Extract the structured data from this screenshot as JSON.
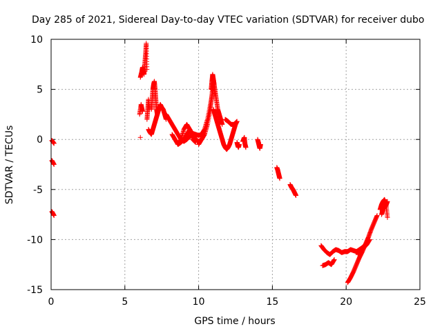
{
  "chart_data": {
    "type": "scatter",
    "title": "Day 285 of 2021, Sidereal Day-to-day VTEC variation (SDTVAR) for receiver dubo",
    "xlabel": "GPS time / hours",
    "ylabel": "SDTVAR / TECUs",
    "xlim": [
      0,
      25
    ],
    "ylim": [
      -15,
      10
    ],
    "xticks": [
      0,
      5,
      10,
      15,
      20,
      25
    ],
    "yticks": [
      -15,
      -10,
      -5,
      0,
      5,
      10
    ],
    "grid": true,
    "marker": "+",
    "color": "#ff0000",
    "series": [
      {
        "name": "SDTVAR",
        "segments": [
          {
            "x": [
              0.05,
              0.2
            ],
            "y": [
              -0.1,
              -0.4
            ]
          },
          {
            "x": [
              0.05,
              0.2
            ],
            "y": [
              -2.1,
              -2.5
            ]
          },
          {
            "x": [
              0.05,
              0.2
            ],
            "y": [
              -7.2,
              -7.6
            ]
          },
          {
            "x": [
              6.05,
              6.15,
              6.2,
              6.25,
              6.3,
              6.35,
              6.4,
              6.45,
              6.5
            ],
            "y": [
              6.2,
              6.8,
              7.2,
              7.0,
              6.5,
              7.5,
              8.5,
              9.6,
              7.0
            ]
          },
          {
            "x": [
              6.0,
              6.1,
              6.2
            ],
            "y": [
              2.5,
              3.5,
              2.8
            ]
          },
          {
            "x": [
              6.05
            ],
            "y": [
              0.2
            ]
          },
          {
            "x": [
              6.6,
              6.7,
              6.8,
              6.9,
              7.0,
              7.1,
              7.2,
              7.3,
              7.4,
              7.5,
              7.6,
              7.7,
              7.8
            ],
            "y": [
              1.0,
              0.7,
              0.5,
              1.0,
              1.5,
              2.0,
              2.5,
              3.0,
              3.5,
              3.2,
              3.0,
              2.5,
              2.0
            ]
          },
          {
            "x": [
              6.8,
              6.85,
              6.9,
              6.95,
              7.0,
              7.05,
              7.1,
              7.15,
              7.2
            ],
            "y": [
              3.0,
              4.0,
              5.0,
              5.5,
              5.8,
              5.0,
              4.0,
              3.0,
              2.5
            ]
          },
          {
            "x": [
              6.5,
              6.55,
              6.6,
              6.65
            ],
            "y": [
              2.0,
              3.0,
              4.0,
              3.0
            ]
          },
          {
            "x": [
              7.8,
              8.0,
              8.2,
              8.4,
              8.6,
              8.8,
              9.0,
              9.2,
              9.4,
              9.6,
              9.8,
              10.0,
              10.2,
              10.4,
              10.6,
              10.8,
              11.0
            ],
            "y": [
              2.5,
              2.0,
              1.5,
              1.0,
              0.5,
              0.0,
              -0.2,
              0.0,
              0.3,
              0.6,
              0.5,
              0.4,
              0.5,
              1.0,
              2.0,
              3.5,
              5.0
            ]
          },
          {
            "x": [
              8.2,
              8.4,
              8.6,
              8.8,
              9.0,
              9.2,
              9.4,
              9.6,
              9.8
            ],
            "y": [
              0.5,
              0.0,
              -0.5,
              0.0,
              1.0,
              1.5,
              1.0,
              0.0,
              -0.3
            ]
          },
          {
            "x": [
              8.6,
              8.8,
              9.0,
              9.2,
              9.4,
              9.6,
              9.8,
              10.0,
              10.2,
              10.4
            ],
            "y": [
              -0.5,
              -0.3,
              0.0,
              0.5,
              1.0,
              0.5,
              0.0,
              -0.2,
              0.0,
              0.5
            ]
          },
          {
            "x": [
              10.0,
              10.2,
              10.4,
              10.6,
              10.8,
              10.9,
              11.0,
              11.1,
              11.2,
              11.3,
              11.4,
              11.5,
              11.6
            ],
            "y": [
              -0.5,
              0.0,
              0.5,
              1.5,
              3.0,
              4.5,
              6.0,
              5.0,
              4.0,
              3.0,
              2.5,
              2.0,
              1.5
            ]
          },
          {
            "x": [
              10.85,
              10.9,
              10.95,
              11.0,
              11.05,
              11.1
            ],
            "y": [
              5.0,
              5.8,
              6.5,
              6.0,
              5.5,
              4.5
            ]
          },
          {
            "x": [
              11.0,
              11.1,
              11.2,
              11.3,
              11.4,
              11.5,
              11.6,
              11.7,
              11.8,
              11.9,
              12.0,
              12.1,
              12.2,
              12.3,
              12.4,
              12.5,
              12.6
            ],
            "y": [
              3.0,
              2.5,
              2.0,
              1.5,
              1.0,
              0.5,
              0.0,
              -0.5,
              -0.8,
              -1.0,
              -0.8,
              -0.5,
              0.0,
              0.5,
              1.0,
              1.5,
              1.8
            ]
          },
          {
            "x": [
              11.8,
              12.0,
              12.2,
              12.4,
              12.6
            ],
            "y": [
              2.0,
              1.8,
              1.5,
              1.5,
              1.8
            ]
          },
          {
            "x": [
              12.6,
              12.65,
              12.7,
              12.75
            ],
            "y": [
              -0.3,
              -0.6,
              -0.8,
              -0.5
            ]
          },
          {
            "x": [
              13.0,
              13.05,
              13.1,
              13.15,
              13.2
            ],
            "y": [
              -0.2,
              0.0,
              0.2,
              -0.5,
              -0.8
            ]
          },
          {
            "x": [
              14.0,
              14.05,
              14.1,
              14.15,
              14.2
            ],
            "y": [
              0.0,
              -0.3,
              -0.6,
              -0.9,
              -0.5
            ]
          },
          {
            "x": [
              15.3,
              15.35,
              15.4,
              15.45,
              15.5
            ],
            "y": [
              -2.8,
              -3.0,
              -3.3,
              -3.6,
              -3.9
            ]
          },
          {
            "x": [
              16.2,
              16.3,
              16.4,
              16.5,
              16.6
            ],
            "y": [
              -4.5,
              -4.8,
              -5.0,
              -5.3,
              -5.6
            ]
          },
          {
            "x": [
              18.3,
              18.5,
              18.7,
              18.9,
              19.1,
              19.3,
              19.5,
              19.7,
              19.9,
              20.1,
              20.3,
              20.5,
              20.7,
              20.9,
              21.1,
              21.3,
              21.5
            ],
            "y": [
              -10.6,
              -11.0,
              -11.3,
              -11.5,
              -11.2,
              -11.0,
              -11.1,
              -11.3,
              -11.2,
              -11.2,
              -11.0,
              -11.1,
              -11.2,
              -11.0,
              -10.8,
              -10.5,
              -10.2
            ]
          },
          {
            "x": [
              18.4,
              18.6,
              18.8,
              19.0,
              19.2
            ],
            "y": [
              -12.6,
              -12.5,
              -12.3,
              -12.5,
              -12.0
            ]
          },
          {
            "x": [
              20.1,
              20.3,
              20.5,
              20.7,
              20.9,
              21.1,
              21.3,
              21.5,
              21.7,
              21.9,
              22.1
            ],
            "y": [
              -14.3,
              -13.8,
              -13.2,
              -12.5,
              -11.8,
              -11.2,
              -10.5,
              -9.8,
              -9.0,
              -8.3,
              -7.6
            ]
          },
          {
            "x": [
              20.8,
              21.0,
              21.2,
              21.4,
              21.6
            ],
            "y": [
              -11.5,
              -11.0,
              -10.8,
              -10.5,
              -10.0
            ]
          },
          {
            "x": [
              22.3,
              22.4,
              22.5,
              22.6,
              22.7,
              22.8
            ],
            "y": [
              -7.0,
              -6.5,
              -6.2,
              -6.0,
              -6.4,
              -7.8
            ]
          },
          {
            "x": [
              22.4,
              22.5,
              22.6,
              22.7,
              22.8
            ],
            "y": [
              -7.5,
              -7.0,
              -6.8,
              -6.6,
              -6.2
            ]
          }
        ]
      }
    ]
  }
}
